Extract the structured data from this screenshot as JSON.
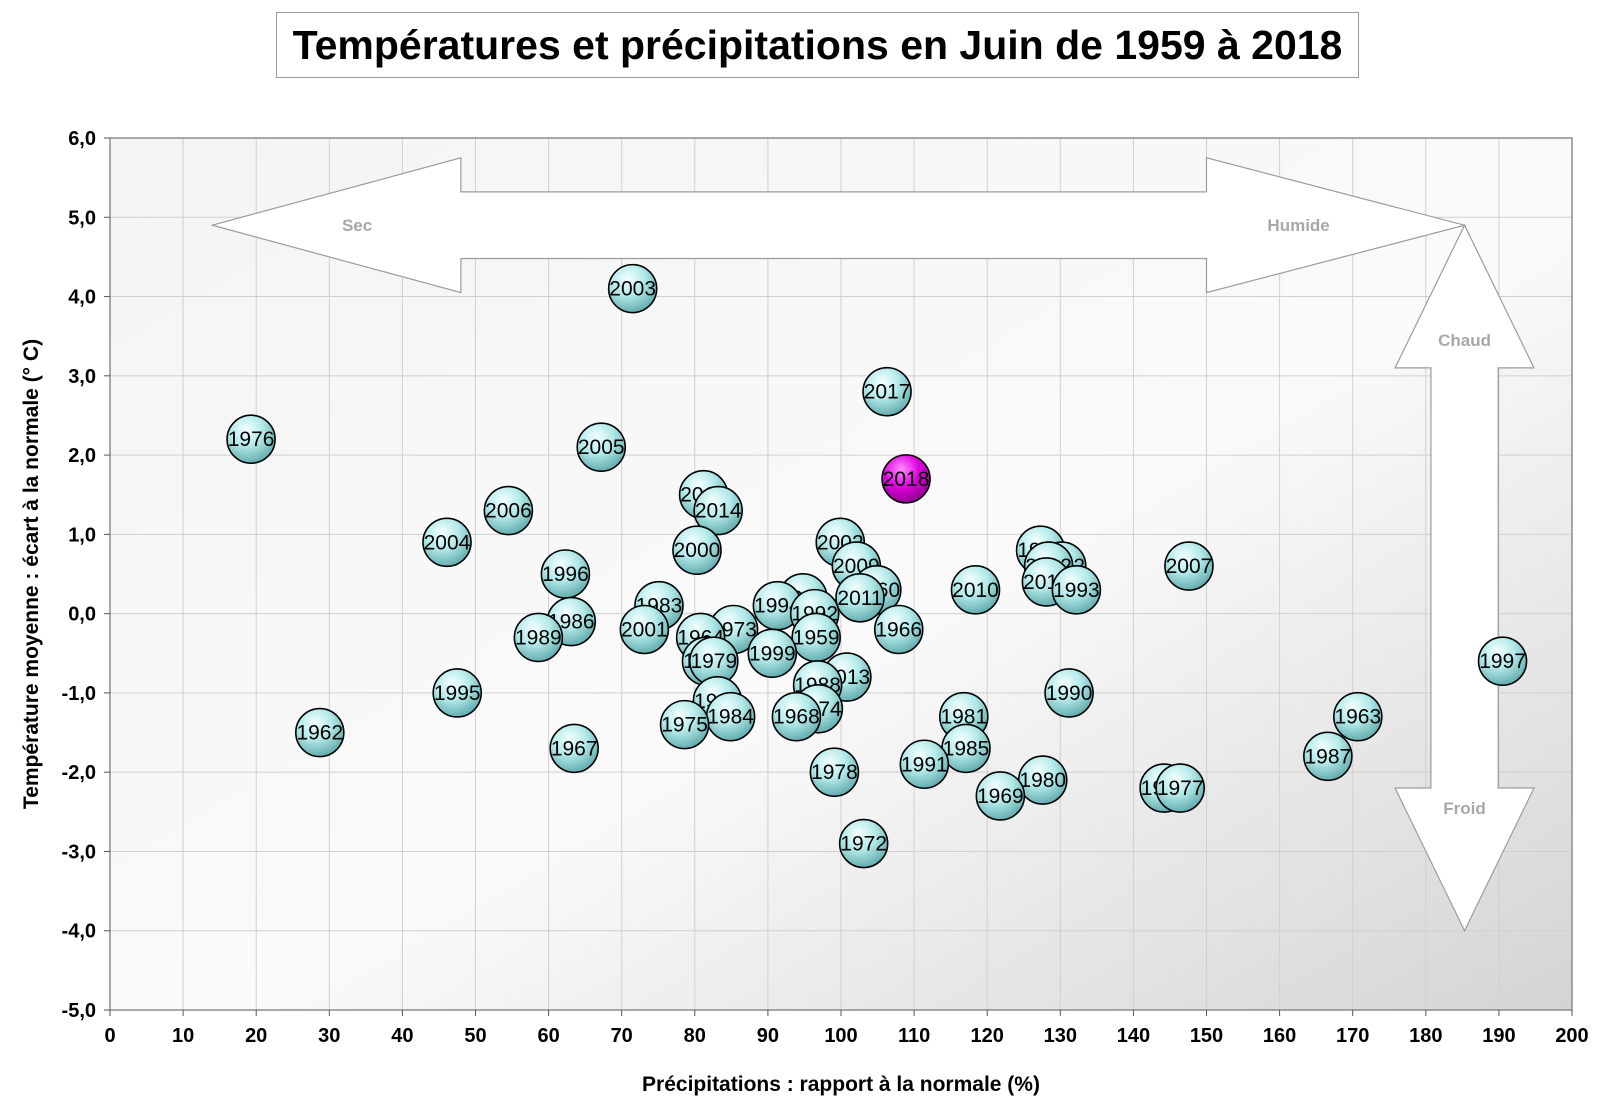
{
  "chart_data": {
    "type": "scatter",
    "title": "Températures et précipitations en Juin de 1959 à 2018",
    "xlabel": "Précipitations : rapport à la normale (%)",
    "ylabel": "Température moyenne : écart à la normale (° C)",
    "xlim": [
      0,
      200
    ],
    "ylim": [
      -5,
      6
    ],
    "xticks": [
      0,
      10,
      20,
      30,
      40,
      50,
      60,
      70,
      80,
      90,
      100,
      110,
      120,
      130,
      140,
      150,
      160,
      170,
      180,
      190,
      200
    ],
    "yticks": [
      6,
      5,
      4,
      3,
      2,
      1,
      0,
      -1,
      -2,
      -3,
      -4,
      -5
    ],
    "ytick_labels": [
      "6,0",
      "5,0",
      "4,0",
      "3,0",
      "2,0",
      "1,0",
      "0,0",
      "-1,0",
      "-2,0",
      "-3,0",
      "-4,0",
      "-5,0"
    ],
    "grid": true,
    "colors": {
      "point": "#a8e4e4",
      "highlight": "#dd00dd",
      "grid": "#d0d0d0"
    },
    "annotations": {
      "dry": "Sec",
      "wet": "Humide",
      "hot": "Chaud",
      "cold": "Froid"
    },
    "points": [
      {
        "label": "2003",
        "x": 71.5,
        "y": 4.1
      },
      {
        "label": "2017",
        "x": 106.3,
        "y": 2.8
      },
      {
        "label": "1976",
        "x": 19.3,
        "y": 2.2
      },
      {
        "label": "2005",
        "x": 67.2,
        "y": 2.1
      },
      {
        "label": "2018",
        "x": 108.9,
        "y": 1.7,
        "highlight": true
      },
      {
        "label": "2015",
        "x": 81.2,
        "y": 1.5
      },
      {
        "label": "2014",
        "x": 83.2,
        "y": 1.3
      },
      {
        "label": "2006",
        "x": 54.5,
        "y": 1.3
      },
      {
        "label": "2004",
        "x": 46.1,
        "y": 0.9
      },
      {
        "label": "2002",
        "x": 99.9,
        "y": 0.9
      },
      {
        "label": "2000",
        "x": 80.3,
        "y": 0.8
      },
      {
        "label": "1982",
        "x": 127.3,
        "y": 0.8
      },
      {
        "label": "1992",
        "x": 130.2,
        "y": 0.6
      },
      {
        "label": "2012",
        "x": 128.4,
        "y": 0.6
      },
      {
        "label": "2007",
        "x": 147.6,
        "y": 0.6
      },
      {
        "label": "2009",
        "x": 102.1,
        "y": 0.6
      },
      {
        "label": "1996",
        "x": 62.3,
        "y": 0.5
      },
      {
        "label": "2016",
        "x": 128.1,
        "y": 0.4
      },
      {
        "label": "1960",
        "x": 104.9,
        "y": 0.3
      },
      {
        "label": "2010",
        "x": 118.4,
        "y": 0.3
      },
      {
        "label": "1993",
        "x": 132.2,
        "y": 0.3
      },
      {
        "label": "2011",
        "x": 102.6,
        "y": 0.2
      },
      {
        "label": "2008",
        "x": 94.8,
        "y": 0.2
      },
      {
        "label": "1994",
        "x": 91.3,
        "y": 0.1
      },
      {
        "label": "1983",
        "x": 75.1,
        "y": 0.1
      },
      {
        "label": "1992",
        "x": 96.4,
        "y": 0.0
      },
      {
        "label": "1986",
        "x": 63.1,
        "y": -0.1
      },
      {
        "label": "1973",
        "x": 85.3,
        "y": -0.2
      },
      {
        "label": "2001",
        "x": 73.1,
        "y": -0.2
      },
      {
        "label": "1966",
        "x": 107.9,
        "y": -0.2
      },
      {
        "label": "1989",
        "x": 58.6,
        "y": -0.3
      },
      {
        "label": "1964",
        "x": 80.8,
        "y": -0.3
      },
      {
        "label": "1959",
        "x": 96.6,
        "y": -0.3
      },
      {
        "label": "1999",
        "x": 90.6,
        "y": -0.5
      },
      {
        "label": "1961",
        "x": 81.6,
        "y": -0.6
      },
      {
        "label": "1979",
        "x": 82.6,
        "y": -0.6
      },
      {
        "label": "1997",
        "x": 190.5,
        "y": -0.6
      },
      {
        "label": "2013",
        "x": 100.8,
        "y": -0.8
      },
      {
        "label": "1988",
        "x": 96.8,
        "y": -0.9
      },
      {
        "label": "1995",
        "x": 47.5,
        "y": -1.0
      },
      {
        "label": "1990",
        "x": 131.2,
        "y": -1.0
      },
      {
        "label": "1965",
        "x": 83.1,
        "y": -1.1
      },
      {
        "label": "1974",
        "x": 96.9,
        "y": -1.2
      },
      {
        "label": "1963",
        "x": 170.7,
        "y": -1.3
      },
      {
        "label": "1984",
        "x": 84.9,
        "y": -1.3
      },
      {
        "label": "1968",
        "x": 93.9,
        "y": -1.3
      },
      {
        "label": "1981",
        "x": 116.8,
        "y": -1.3
      },
      {
        "label": "1975",
        "x": 78.6,
        "y": -1.4
      },
      {
        "label": "1962",
        "x": 28.7,
        "y": -1.5
      },
      {
        "label": "1967",
        "x": 63.5,
        "y": -1.7
      },
      {
        "label": "1985",
        "x": 117.1,
        "y": -1.7
      },
      {
        "label": "1987",
        "x": 166.6,
        "y": -1.8
      },
      {
        "label": "1991",
        "x": 111.4,
        "y": -1.9
      },
      {
        "label": "1978",
        "x": 99.1,
        "y": -2.0
      },
      {
        "label": "1980",
        "x": 127.6,
        "y": -2.1
      },
      {
        "label": "1971",
        "x": 144.2,
        "y": -2.2
      },
      {
        "label": "1977",
        "x": 146.4,
        "y": -2.2
      },
      {
        "label": "1969",
        "x": 121.8,
        "y": -2.3
      },
      {
        "label": "1972",
        "x": 103.1,
        "y": -2.9
      }
    ]
  }
}
